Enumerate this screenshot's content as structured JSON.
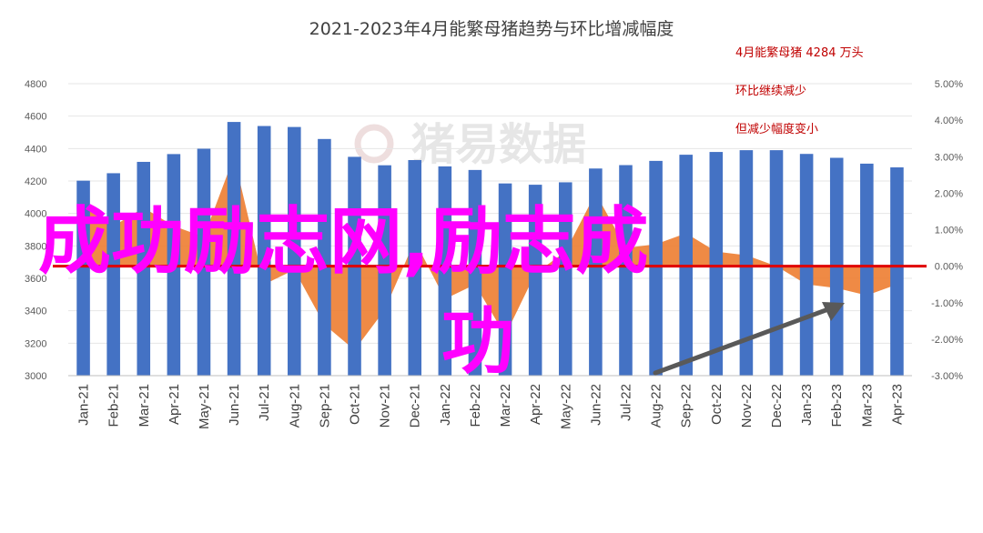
{
  "chart_data": {
    "type": "bar",
    "title": "2021-2023年4月能繁母猪趋势与环比增减幅度",
    "categories": [
      "Jan-21",
      "Feb-21",
      "Mar-21",
      "Apr-21",
      "May-21",
      "Jun-21",
      "Jul-21",
      "Aug-21",
      "Sep-21",
      "Oct-21",
      "Nov-21",
      "Dec-21",
      "Jan-22",
      "Feb-22",
      "Mar-22",
      "Apr-22",
      "May-22",
      "Jun-22",
      "Jul-22",
      "Aug-22",
      "Sep-22",
      "Oct-22",
      "Nov-22",
      "Dec-22",
      "Jan-23",
      "Feb-23",
      "Mar-23",
      "Apr-23"
    ],
    "series": [
      {
        "type": "bar",
        "color": "#4472c4",
        "axis": "left",
        "values": [
          4202,
          4248,
          4318,
          4366,
          4399,
          4564,
          4539,
          4533,
          4459,
          4349,
          4297,
          4329,
          4290,
          4268,
          4185,
          4177,
          4192,
          4277,
          4298,
          4324,
          4362,
          4379,
          4390,
          4390,
          4367,
          4343,
          4307,
          4284
        ]
      },
      {
        "type": "area",
        "color": "#ed7d31",
        "axis": "right",
        "values": [
          1.8,
          1.1,
          1.6,
          1.1,
          0.8,
          3.0,
          -0.5,
          -0.1,
          -1.6,
          -2.3,
          -1.2,
          0.7,
          -0.9,
          -0.5,
          -1.9,
          -0.2,
          0.4,
          2.0,
          0.5,
          0.6,
          0.9,
          0.4,
          0.3,
          0.0,
          -0.5,
          -0.6,
          -0.8,
          -0.5
        ]
      }
    ],
    "y_left": {
      "ylim": [
        3000,
        4800
      ],
      "ticks": [
        "3000",
        "3200",
        "3400",
        "3600",
        "3800",
        "4000",
        "4200",
        "4400",
        "4600",
        "4800"
      ]
    },
    "y_right": {
      "ylim": [
        -3,
        5
      ],
      "ticks": [
        "-3.00%",
        "-2.00%",
        "-1.00%",
        "0.00%",
        "1.00%",
        "2.00%",
        "3.00%",
        "4.00%",
        "5.00%"
      ]
    },
    "zero_line_color": "#e00000",
    "trend_arrow_color": "#595959",
    "annotations": [
      "4月能繁母猪 4284 万头",
      "环比继续减少",
      "但减少幅度变小"
    ],
    "watermark": "猪易数据",
    "overlay_text": [
      "成功励志网,励志成",
      "功"
    ],
    "overlay_color": "#ff00ff"
  }
}
